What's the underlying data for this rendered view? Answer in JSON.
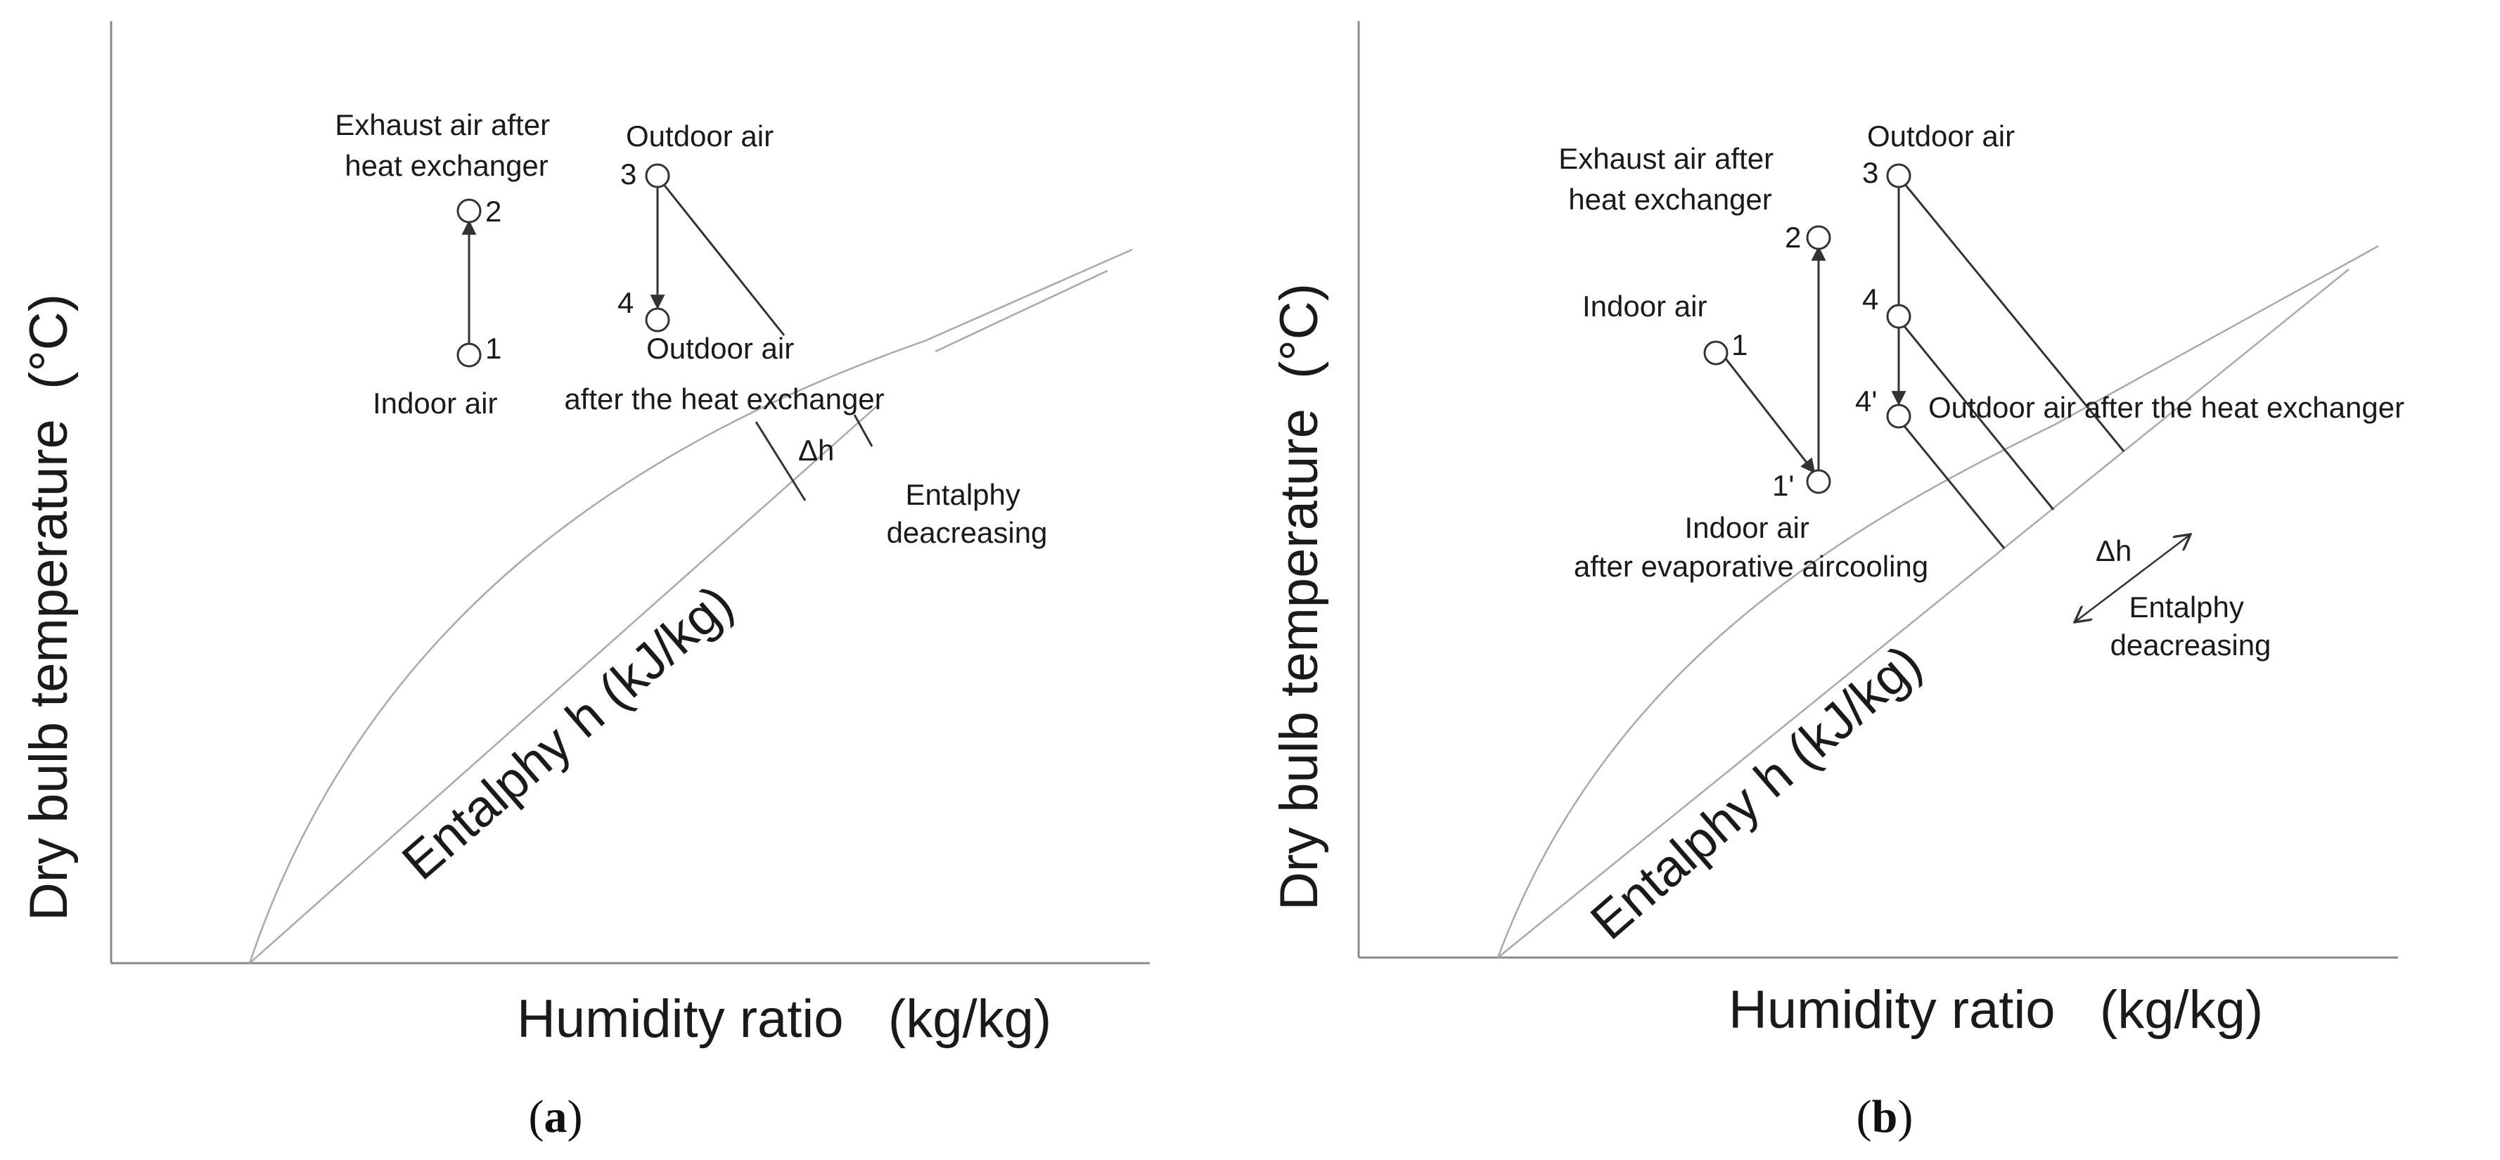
{
  "panels": [
    {
      "id": "a",
      "label_open": "(",
      "label_letter": "a",
      "label_close": ")",
      "x_axis_label": "Humidity ratio   (kg/kg)",
      "y_axis_label": "Dry bulb temperature  (°C)",
      "enthalpy_label": "Entalphy  h (kJ/kg)",
      "delta_h": "Δh",
      "enthalpy_note": [
        "Entalphy",
        "deacreasing"
      ],
      "points": [
        {
          "num": "1",
          "label": [
            "Indoor air"
          ]
        },
        {
          "num": "2",
          "label": [
            "Exhaust air after",
            "heat exchanger"
          ]
        },
        {
          "num": "3",
          "label": [
            "Outdoor air"
          ]
        },
        {
          "num": "4",
          "label": [
            "Outdoor air",
            "after the heat exchanger"
          ]
        }
      ]
    },
    {
      "id": "b",
      "label_open": "(",
      "label_letter": "b",
      "label_close": ")",
      "x_axis_label": "Humidity ratio   (kg/kg)",
      "y_axis_label": "Dry bulb temperature  (°C)",
      "enthalpy_label": "Entalphy  h (kJ/kg)",
      "delta_h": "Δh",
      "enthalpy_note": [
        "Entalphy",
        "deacreasing"
      ],
      "points": [
        {
          "num": "1",
          "label": [
            "Indoor air"
          ]
        },
        {
          "num": "1'",
          "label": [
            "Indoor air",
            "after evaporative aircooling"
          ]
        },
        {
          "num": "2",
          "label": [
            "Exhaust air after",
            "heat exchanger"
          ]
        },
        {
          "num": "3",
          "label": [
            "Outdoor air"
          ]
        },
        {
          "num": "4",
          "label": []
        },
        {
          "num": "4'",
          "label": [
            "Outdoor air after the heat exchanger"
          ]
        }
      ]
    }
  ]
}
